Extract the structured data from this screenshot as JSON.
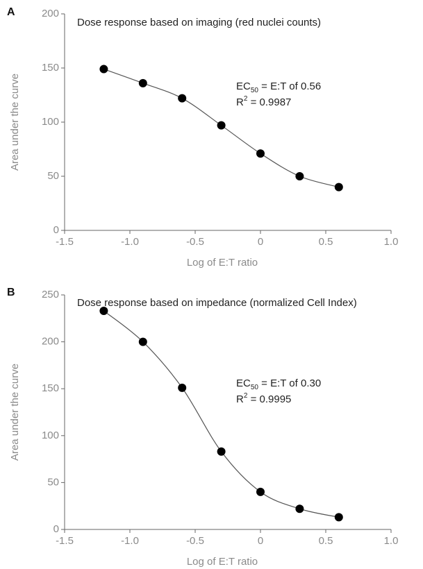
{
  "chart_data": [
    {
      "type": "scatter",
      "panel": "A",
      "title": "Dose response based on imaging (red nuclei counts)",
      "x_label": "Log of E:T ratio",
      "y_label": "Area under the curve",
      "annotations": [
        [
          "EC",
          "50",
          " = E:T of 0.56"
        ],
        [
          "R",
          "2",
          " = 0.9987"
        ]
      ],
      "x": [
        -1.2,
        -0.9,
        -0.6,
        -0.3,
        0,
        0.3,
        0.6
      ],
      "series": [
        {
          "name": "Area under the curve",
          "color": "#000000",
          "values": [
            149,
            136,
            122,
            97,
            71,
            50,
            40
          ]
        }
      ],
      "xlim": [
        -1.5,
        1
      ],
      "xticks": [
        -1.5,
        {
          "value": -1,
          "label": "-1.0"
        },
        -0.5,
        0,
        0.5,
        {
          "value": 1,
          "label": "1.0"
        }
      ],
      "ylim": [
        0,
        200
      ],
      "yticks": [
        0,
        50,
        100,
        150,
        200
      ]
    },
    {
      "type": "scatter",
      "panel": "B",
      "title": "Dose response based on impedance (normalized Cell Index)",
      "x_label": "Log of E:T ratio",
      "y_label": "Area under the curve",
      "annotations": [
        [
          "EC",
          "50",
          " = E:T of 0.30"
        ],
        [
          "R",
          "2",
          " = 0.9995"
        ]
      ],
      "x": [
        -1.2,
        -0.9,
        -0.6,
        -0.3,
        0,
        0.3,
        0.6
      ],
      "series": [
        {
          "name": "Area under the curve",
          "color": "#000000",
          "values": [
            233,
            200,
            151,
            83,
            40,
            22,
            13
          ]
        }
      ],
      "xlim": [
        -1.5,
        1
      ],
      "xticks": [
        -1.5,
        {
          "value": -1,
          "label": "-1.0"
        },
        -0.5,
        0,
        0.5,
        {
          "value": 1,
          "label": "1.0"
        }
      ],
      "ylim": [
        0,
        250
      ],
      "yticks": [
        0,
        50,
        100,
        150,
        200,
        250
      ]
    }
  ]
}
